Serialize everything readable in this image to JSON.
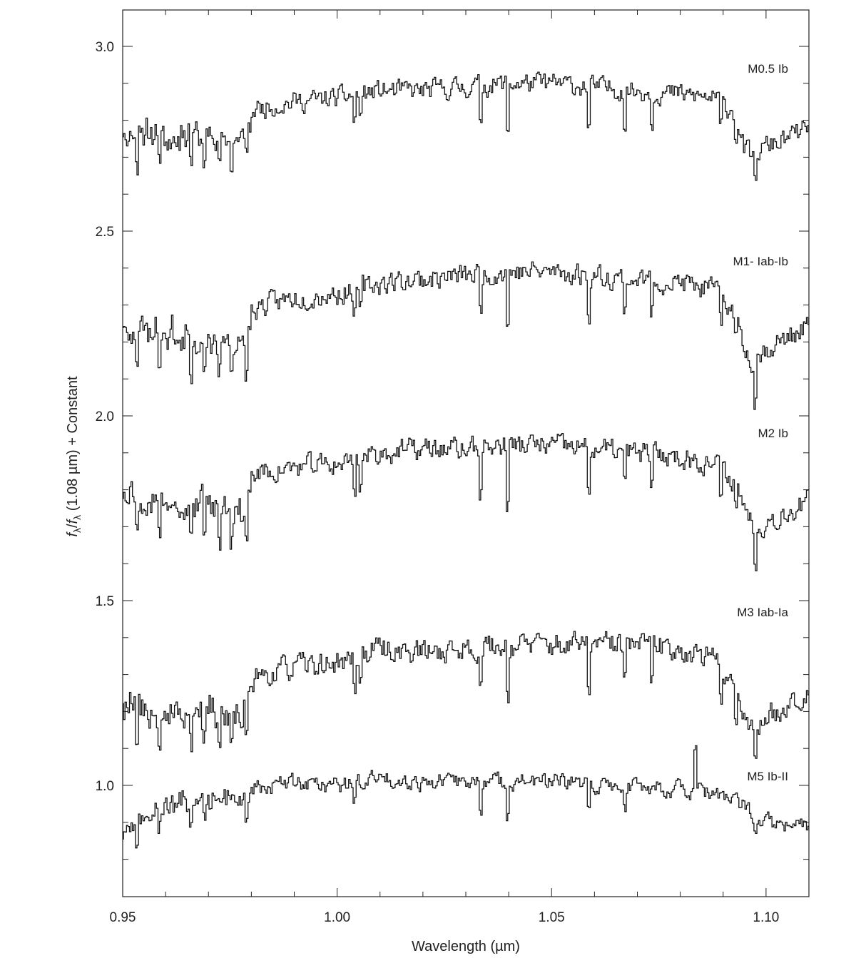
{
  "chart_data": {
    "type": "line",
    "xlabel": "Wavelength (µm)",
    "ylabel": "f_λ / f_λ (1.08 µm) + Constant",
    "ylabel_parts": {
      "f1": "f",
      "sub1": "λ",
      "slash": "/",
      "f2": "f",
      "sub2": "λ",
      "rest": " (1.08 µm) + Constant"
    },
    "xlim": [
      0.95,
      1.11
    ],
    "ylim": [
      0.7,
      3.1
    ],
    "xticks_labeled": [
      "0.95",
      "1.00",
      "1.05",
      "1.10"
    ],
    "xtick_values": [
      0.95,
      1.0,
      1.05,
      1.1
    ],
    "yticks_labeled": [
      "1.0",
      "1.5",
      "2.0",
      "2.5",
      "3.0"
    ],
    "ytick_values": [
      1.0,
      1.5,
      2.0,
      2.5,
      3.0
    ],
    "grid": false,
    "line_color": "#111111",
    "series": [
      {
        "name": "M0.5 Ib",
        "knots": [
          [
            0.95,
            2.78
          ],
          [
            0.96,
            2.78
          ],
          [
            0.97,
            2.77
          ],
          [
            0.978,
            2.76
          ],
          [
            0.98,
            2.83
          ],
          [
            0.99,
            2.85
          ],
          [
            1.0,
            2.86
          ],
          [
            1.01,
            2.88
          ],
          [
            1.02,
            2.88
          ],
          [
            1.03,
            2.89
          ],
          [
            1.04,
            2.9
          ],
          [
            1.05,
            2.9
          ],
          [
            1.06,
            2.89
          ],
          [
            1.07,
            2.88
          ],
          [
            1.08,
            2.87
          ],
          [
            1.088,
            2.86
          ],
          [
            1.093,
            2.82
          ],
          [
            1.095,
            2.72
          ],
          [
            1.097,
            2.7
          ],
          [
            1.1,
            2.73
          ],
          [
            1.105,
            2.75
          ],
          [
            1.11,
            2.78
          ]
        ],
        "noise": 0.055,
        "dips": [
          [
            0.9533,
            0.08
          ],
          [
            0.9585,
            0.06
          ],
          [
            0.966,
            0.07
          ],
          [
            0.969,
            0.07
          ],
          [
            0.9725,
            0.07
          ],
          [
            0.9755,
            0.07
          ],
          [
            0.979,
            0.08
          ],
          [
            1.004,
            0.07
          ],
          [
            1.0055,
            0.06
          ],
          [
            1.0335,
            0.09
          ],
          [
            1.0399,
            0.13
          ],
          [
            1.0588,
            0.11
          ],
          [
            1.067,
            0.09
          ],
          [
            1.0735,
            0.08
          ],
          [
            1.0895,
            0.07
          ],
          [
            1.093,
            0.06
          ],
          [
            1.0975,
            0.08
          ]
        ],
        "spike": null,
        "seed": 11
      },
      {
        "name": "M1- Iab-Ib",
        "knots": [
          [
            0.95,
            2.27
          ],
          [
            0.96,
            2.25
          ],
          [
            0.97,
            2.23
          ],
          [
            0.978,
            2.22
          ],
          [
            0.98,
            2.29
          ],
          [
            0.99,
            2.32
          ],
          [
            1.0,
            2.33
          ],
          [
            1.01,
            2.36
          ],
          [
            1.02,
            2.37
          ],
          [
            1.03,
            2.38
          ],
          [
            1.04,
            2.39
          ],
          [
            1.05,
            2.39
          ],
          [
            1.06,
            2.38
          ],
          [
            1.07,
            2.37
          ],
          [
            1.08,
            2.36
          ],
          [
            1.088,
            2.34
          ],
          [
            1.093,
            2.28
          ],
          [
            1.095,
            2.18
          ],
          [
            1.097,
            2.15
          ],
          [
            1.1,
            2.18
          ],
          [
            1.105,
            2.21
          ],
          [
            1.11,
            2.25
          ]
        ],
        "noise": 0.06,
        "dips": [
          [
            0.9533,
            0.09
          ],
          [
            0.9585,
            0.07
          ],
          [
            0.966,
            0.08
          ],
          [
            0.969,
            0.08
          ],
          [
            0.9725,
            0.08
          ],
          [
            0.9755,
            0.08
          ],
          [
            0.979,
            0.09
          ],
          [
            1.004,
            0.08
          ],
          [
            1.0055,
            0.07
          ],
          [
            1.0335,
            0.1
          ],
          [
            1.0399,
            0.14
          ],
          [
            1.0588,
            0.11
          ],
          [
            1.067,
            0.09
          ],
          [
            1.0735,
            0.09
          ],
          [
            1.0895,
            0.08
          ],
          [
            1.093,
            0.07
          ],
          [
            1.0975,
            0.1
          ]
        ],
        "spike": null,
        "seed": 23
      },
      {
        "name": "M2 Ib",
        "knots": [
          [
            0.95,
            1.82
          ],
          [
            0.96,
            1.8
          ],
          [
            0.97,
            1.78
          ],
          [
            0.978,
            1.77
          ],
          [
            0.98,
            1.84
          ],
          [
            0.99,
            1.86
          ],
          [
            1.0,
            1.87
          ],
          [
            1.01,
            1.9
          ],
          [
            1.02,
            1.91
          ],
          [
            1.03,
            1.91
          ],
          [
            1.04,
            1.92
          ],
          [
            1.05,
            1.92
          ],
          [
            1.06,
            1.91
          ],
          [
            1.07,
            1.9
          ],
          [
            1.08,
            1.89
          ],
          [
            1.088,
            1.87
          ],
          [
            1.093,
            1.82
          ],
          [
            1.095,
            1.76
          ],
          [
            1.097,
            1.7
          ],
          [
            1.1,
            1.71
          ],
          [
            1.105,
            1.74
          ],
          [
            1.11,
            1.77
          ]
        ],
        "noise": 0.06,
        "dips": [
          [
            0.9533,
            0.08
          ],
          [
            0.9585,
            0.07
          ],
          [
            0.966,
            0.08
          ],
          [
            0.969,
            0.08
          ],
          [
            0.9725,
            0.08
          ],
          [
            0.9755,
            0.08
          ],
          [
            0.979,
            0.1
          ],
          [
            1.004,
            0.08
          ],
          [
            1.0055,
            0.07
          ],
          [
            1.0335,
            0.11
          ],
          [
            1.0399,
            0.15
          ],
          [
            1.0588,
            0.11
          ],
          [
            1.067,
            0.09
          ],
          [
            1.0735,
            0.09
          ],
          [
            1.0895,
            0.08
          ],
          [
            1.093,
            0.07
          ],
          [
            1.0975,
            0.09
          ]
        ],
        "spike": null,
        "seed": 37
      },
      {
        "name": "M3 Iab-Ia",
        "knots": [
          [
            0.95,
            1.24
          ],
          [
            0.96,
            1.23
          ],
          [
            0.97,
            1.22
          ],
          [
            0.978,
            1.21
          ],
          [
            0.98,
            1.29
          ],
          [
            0.99,
            1.32
          ],
          [
            1.0,
            1.33
          ],
          [
            1.01,
            1.37
          ],
          [
            1.02,
            1.36
          ],
          [
            1.03,
            1.37
          ],
          [
            1.04,
            1.38
          ],
          [
            1.05,
            1.38
          ],
          [
            1.06,
            1.38
          ],
          [
            1.07,
            1.38
          ],
          [
            1.08,
            1.37
          ],
          [
            1.088,
            1.34
          ],
          [
            1.093,
            1.27
          ],
          [
            1.095,
            1.19
          ],
          [
            1.097,
            1.15
          ],
          [
            1.1,
            1.18
          ],
          [
            1.105,
            1.22
          ],
          [
            1.11,
            1.26
          ]
        ],
        "noise": 0.065,
        "dips": [
          [
            0.9533,
            0.08
          ],
          [
            0.9585,
            0.07
          ],
          [
            0.966,
            0.08
          ],
          [
            0.969,
            0.08
          ],
          [
            0.9725,
            0.08
          ],
          [
            0.9755,
            0.08
          ],
          [
            0.979,
            0.1
          ],
          [
            1.004,
            0.08
          ],
          [
            1.0055,
            0.07
          ],
          [
            1.0335,
            0.1
          ],
          [
            1.0399,
            0.14
          ],
          [
            1.0588,
            0.11
          ],
          [
            1.067,
            0.09
          ],
          [
            1.0735,
            0.09
          ],
          [
            1.0895,
            0.08
          ],
          [
            1.093,
            0.07
          ],
          [
            1.0975,
            0.1
          ]
        ],
        "spike": null,
        "seed": 53
      },
      {
        "name": "M5 Ib-II",
        "knots": [
          [
            0.95,
            0.89
          ],
          [
            0.955,
            0.92
          ],
          [
            0.96,
            0.96
          ],
          [
            0.97,
            0.98
          ],
          [
            0.98,
            0.99
          ],
          [
            0.99,
            1.01
          ],
          [
            1.0,
            1.0
          ],
          [
            1.01,
            1.02
          ],
          [
            1.02,
            1.01
          ],
          [
            1.03,
            1.01
          ],
          [
            1.04,
            1.01
          ],
          [
            1.05,
            1.01
          ],
          [
            1.06,
            1.0
          ],
          [
            1.07,
            1.0
          ],
          [
            1.08,
            0.99
          ],
          [
            1.09,
            0.97
          ],
          [
            1.095,
            0.94
          ],
          [
            1.1,
            0.9
          ],
          [
            1.105,
            0.89
          ],
          [
            1.11,
            0.89
          ]
        ],
        "noise": 0.045,
        "dips": [
          [
            0.9533,
            0.06
          ],
          [
            0.9585,
            0.05
          ],
          [
            0.966,
            0.06
          ],
          [
            0.969,
            0.05
          ],
          [
            0.979,
            0.07
          ],
          [
            1.004,
            0.06
          ],
          [
            1.0335,
            0.07
          ],
          [
            1.0399,
            0.08
          ],
          [
            1.0588,
            0.08
          ],
          [
            1.067,
            0.06
          ],
          [
            1.0975,
            0.04
          ]
        ],
        "spike": [
          1.0835,
          0.11
        ],
        "seed": 71
      }
    ]
  }
}
